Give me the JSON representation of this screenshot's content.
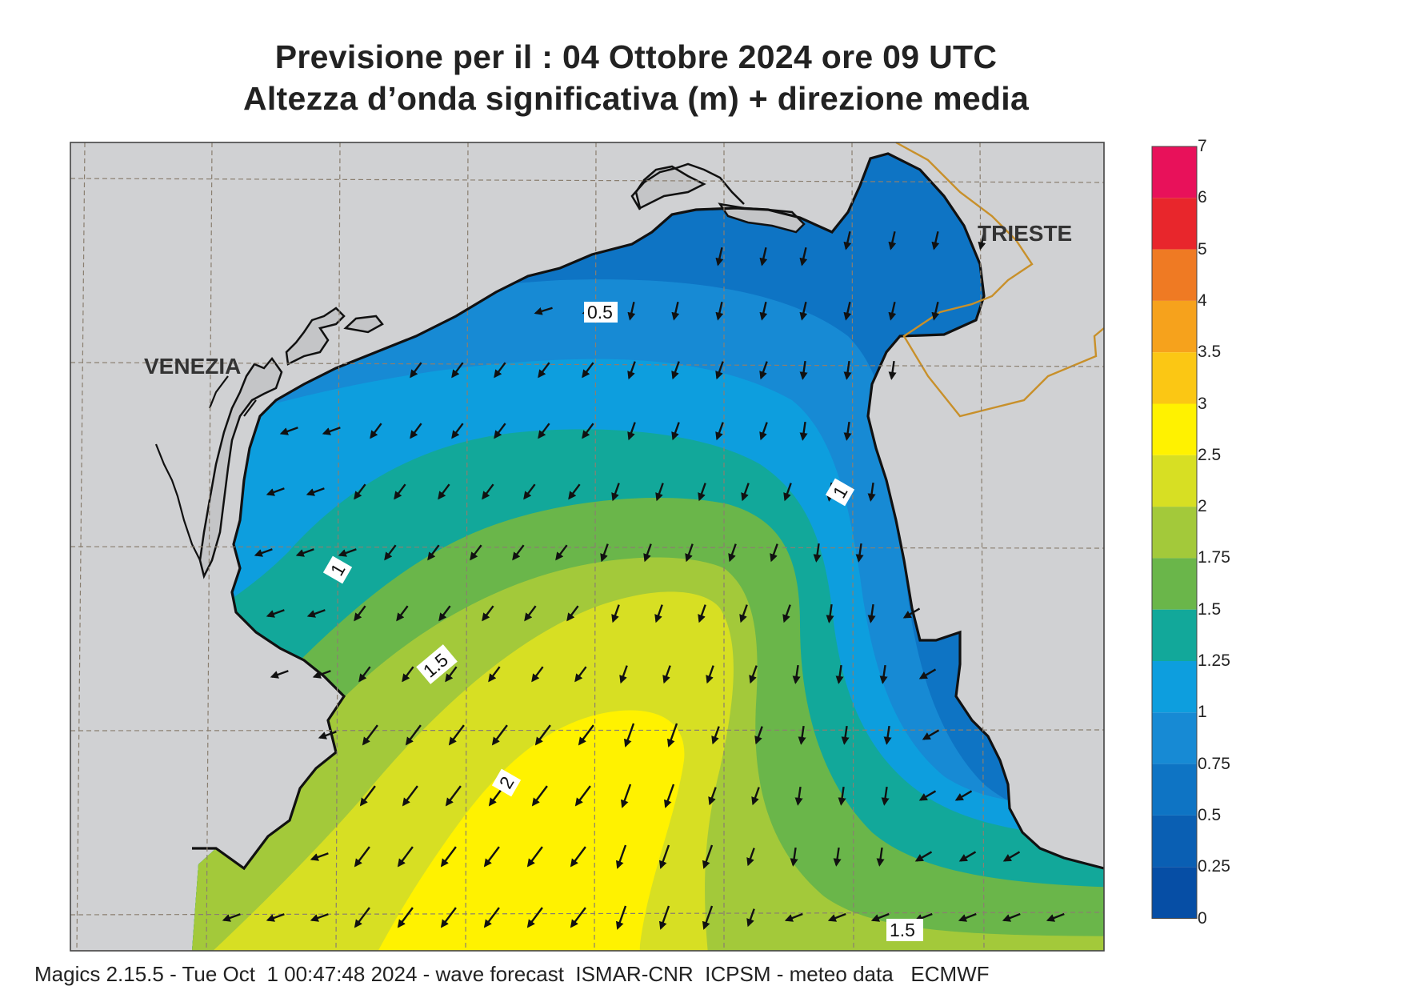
{
  "title": {
    "line1": "Previsione per il  :  04  Ottobre  2024   ore 09 UTC",
    "line2": "Altezza d’onda significativa (m) + direzione media"
  },
  "map": {
    "cities": [
      "VENEZIA",
      "TRIESTE"
    ],
    "contour_labels": [
      "0.5",
      "1",
      "1",
      "1.5",
      "2",
      "1.5"
    ],
    "land_color": "#d0d1d3",
    "coast_color": "#111111",
    "border_color": "#c8902a",
    "grid_color": "#8a7f70",
    "arrow_color": "#111111",
    "arrow_icon": "mean-wave-direction-arrow-icon"
  },
  "legend": {
    "levels": [
      "7",
      "6",
      "5",
      "4",
      "3.5",
      "3",
      "2.5",
      "2",
      "1.75",
      "1.5",
      "1.25",
      "1",
      "0.75",
      "0.5",
      "0.25",
      "0"
    ],
    "colors": [
      "#e8115a",
      "#e8262c",
      "#ef7a23",
      "#f6a21c",
      "#fbc714",
      "#fff200",
      "#d7df23",
      "#a3c93a",
      "#6ab64a",
      "#12a89a",
      "#0d9ede",
      "#178ad4",
      "#0e74c4",
      "#0a5fb3",
      "#064ea5"
    ]
  },
  "footer": {
    "text": "Magics 2.15.5 - Tue Oct  1 00:47:48 2024 - wave forecast  ISMAR-CNR  ICPSM - meteo data   ECMWF"
  }
}
